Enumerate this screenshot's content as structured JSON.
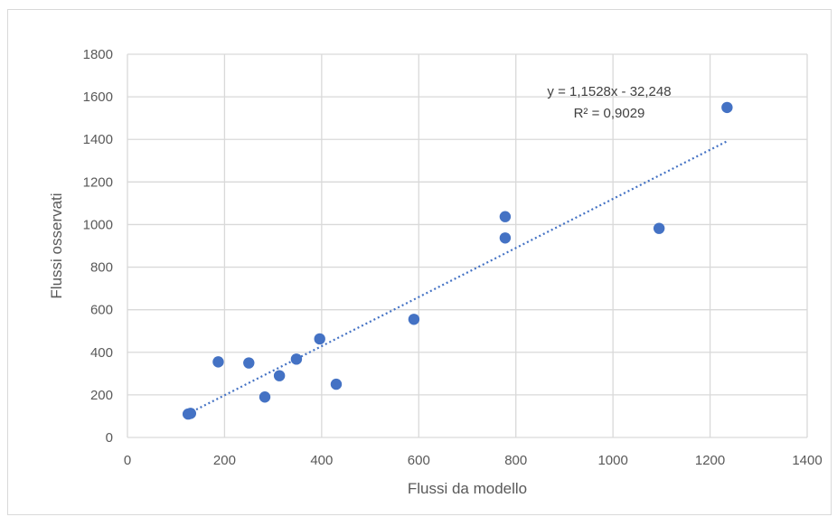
{
  "chart_data": {
    "type": "scatter",
    "title": "",
    "xlabel": "Flussi da modello",
    "ylabel": "Flussi osservati",
    "xlim": [
      0,
      1400
    ],
    "ylim": [
      0,
      1800
    ],
    "xticks": [
      0,
      200,
      400,
      600,
      800,
      1000,
      1200,
      1400
    ],
    "yticks": [
      0,
      200,
      400,
      600,
      800,
      1000,
      1200,
      1400,
      1600,
      1800
    ],
    "grid": true,
    "legend": "none",
    "series": [
      {
        "color": "#4472c4",
        "points": [
          [
            125,
            110
          ],
          [
            130,
            113
          ],
          [
            187,
            355
          ],
          [
            250,
            350
          ],
          [
            283,
            190
          ],
          [
            313,
            290
          ],
          [
            348,
            368
          ],
          [
            396,
            463
          ],
          [
            430,
            250
          ],
          [
            590,
            555
          ],
          [
            778,
            1037
          ],
          [
            778,
            937
          ],
          [
            1095,
            982
          ],
          [
            1235,
            1550
          ]
        ]
      }
    ],
    "trendline": {
      "type": "linear",
      "slope": 1.1528,
      "intercept": -32.248,
      "x_range": [
        125,
        1235
      ],
      "style": "dotted",
      "color": "#4472c4",
      "equation_label": "y = 1,1528x - 32,248",
      "r2_label": "R² = 0,9029"
    }
  }
}
